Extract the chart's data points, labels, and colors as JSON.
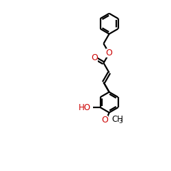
{
  "bg_color": "#ffffff",
  "bond_color": "#000000",
  "atom_color_O": "#cc0000",
  "line_width": 1.6,
  "font_size": 8.5,
  "font_size_sub": 6.5,
  "xlim": [
    0,
    10
  ],
  "ylim": [
    0,
    13
  ],
  "figsize": [
    2.5,
    2.5
  ],
  "dpi": 100
}
